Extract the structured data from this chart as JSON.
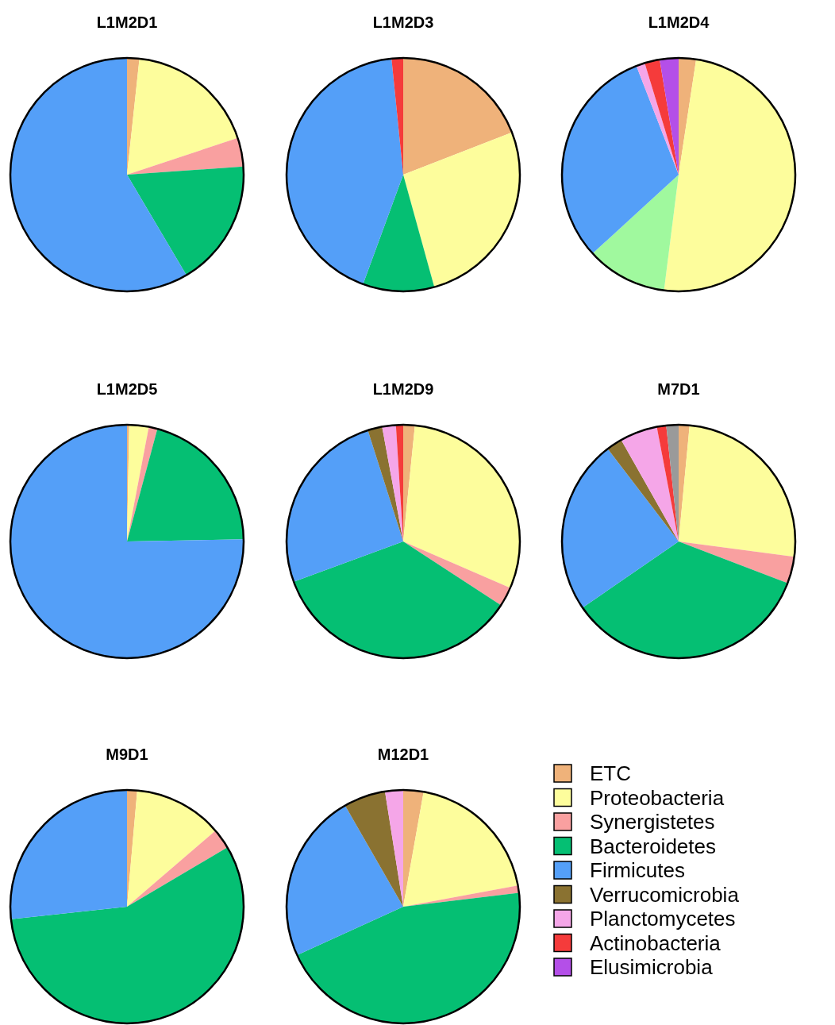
{
  "chart_data": [
    {
      "type": "pie",
      "title": "L1M2D1",
      "categories": [
        null,
        null,
        null,
        null,
        null
      ],
      "values": [
        1.7,
        18.2,
        4.0,
        17.6,
        58.5
      ],
      "colors": [
        "#efb27a",
        "#fdfd9c",
        "#f9a0a0",
        "#05bf73",
        "#549ff8"
      ]
    },
    {
      "type": "pie",
      "title": "L1M2D3",
      "categories": [
        null,
        null,
        null,
        null,
        null
      ],
      "values": [
        19.1,
        26.6,
        9.9,
        42.8,
        1.6
      ],
      "colors": [
        "#efb27a",
        "#fdfd9c",
        "#05bf73",
        "#549ff8",
        "#f53b3b"
      ]
    },
    {
      "type": "pie",
      "title": "L1M2D4",
      "categories": [
        null,
        null,
        null,
        null,
        null,
        null,
        null
      ],
      "values": [
        2.4,
        49.6,
        11.2,
        30.9,
        1.2,
        2.1,
        2.6
      ],
      "colors": [
        "#efb27a",
        "#fdfd9c",
        "#a0f99e",
        "#549ff8",
        "#f5a6e8",
        "#f53b3b",
        "#b44fe8"
      ]
    },
    {
      "type": "pie",
      "title": "L1M2D5",
      "categories": [
        null,
        null,
        null,
        null,
        null
      ],
      "values": [
        0.3,
        2.7,
        1.2,
        20.5,
        75.3
      ],
      "colors": [
        "#efb27a",
        "#fdfd9c",
        "#f9a0a0",
        "#05bf73",
        "#549ff8"
      ]
    },
    {
      "type": "pie",
      "title": "L1M2D9",
      "categories": [
        null,
        null,
        null,
        null,
        null,
        null,
        null,
        null
      ],
      "values": [
        1.6,
        29.9,
        2.7,
        35.2,
        25.7,
        2.0,
        1.9,
        1.0
      ],
      "colors": [
        "#efb27a",
        "#fdfd9c",
        "#f9a0a0",
        "#05bf73",
        "#549ff8",
        "#8a7231",
        "#f5a6e8",
        "#f53b3b"
      ]
    },
    {
      "type": "pie",
      "title": "M7D1",
      "categories": [
        null,
        null,
        null,
        null,
        null,
        null,
        null,
        null,
        null
      ],
      "values": [
        1.5,
        25.6,
        3.7,
        34.6,
        24.2,
        2.2,
        5.2,
        1.3,
        1.7
      ],
      "colors": [
        "#efb27a",
        "#fdfd9c",
        "#f9a0a0",
        "#05bf73",
        "#549ff8",
        "#8a7231",
        "#f5a6e8",
        "#f53b3b",
        "#9a9a9a"
      ]
    },
    {
      "type": "pie",
      "title": "M9D1",
      "categories": [
        null,
        null,
        null,
        null,
        null
      ],
      "values": [
        1.4,
        12.3,
        2.8,
        56.8,
        26.7
      ],
      "colors": [
        "#efb27a",
        "#fdfd9c",
        "#f9a0a0",
        "#05bf73",
        "#549ff8"
      ]
    },
    {
      "type": "pie",
      "title": "M12D1",
      "categories": [
        null,
        null,
        null,
        null,
        null,
        null,
        null
      ],
      "values": [
        2.8,
        19.3,
        1.0,
        45.1,
        23.5,
        5.8,
        2.5
      ],
      "colors": [
        "#efb27a",
        "#fdfd9c",
        "#f9a0a0",
        "#05bf73",
        "#549ff8",
        "#8a7231",
        "#f5a6e8"
      ]
    },
    {
      "type": "other",
      "categories": [
        "ETC",
        "Proteobacteria",
        "Synergistetes",
        "Bacteroidetes",
        "Firmicutes",
        "Verrucomicrobia",
        "Planctomycetes",
        "Actinobacteria",
        "Elusimicrobia"
      ],
      "colors": [
        "#efb27a",
        "#fdfd9c",
        "#f9a0a0",
        "#05bf73",
        "#549ff8",
        "#8a7231",
        "#f5a6e8",
        "#f53b3b",
        "#b44fe8"
      ]
    }
  ]
}
